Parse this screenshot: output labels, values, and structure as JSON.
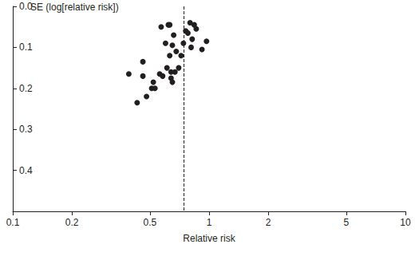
{
  "chart_data": {
    "type": "scatter",
    "xlabel": "Relative risk",
    "ylabel": "SE (log[relative risk])",
    "x": [
      0.39,
      0.43,
      0.46,
      0.46,
      0.48,
      0.51,
      0.52,
      0.53,
      0.56,
      0.57,
      0.58,
      0.6,
      0.61,
      0.62,
      0.63,
      0.63,
      0.64,
      0.64,
      0.65,
      0.65,
      0.66,
      0.67,
      0.68,
      0.7,
      0.72,
      0.74,
      0.76,
      0.78,
      0.8,
      0.81,
      0.82,
      0.84,
      0.86,
      0.92,
      0.97
    ],
    "y": [
      0.165,
      0.235,
      0.135,
      0.17,
      0.22,
      0.2,
      0.185,
      0.2,
      0.165,
      0.05,
      0.17,
      0.09,
      0.15,
      0.045,
      0.045,
      0.12,
      0.16,
      0.175,
      0.185,
      0.095,
      0.07,
      0.16,
      0.11,
      0.15,
      0.12,
      0.09,
      0.06,
      0.065,
      0.04,
      0.1,
      0.08,
      0.045,
      0.055,
      0.105,
      0.085
    ],
    "color": "#231f20",
    "marker": "circle",
    "log": "x",
    "grid": false,
    "xlim": [
      0.1,
      10
    ],
    "xticks": [
      0.1,
      0.2,
      0.5,
      1,
      2,
      5,
      10
    ],
    "ylim": [
      0,
      0.5
    ],
    "yticks": [
      {
        "value": 0,
        "label": "0.0"
      },
      0.1,
      0.2,
      0.3,
      0.4
    ],
    "reference_line": {
      "x": 0.74,
      "line_style": "dashed"
    }
  }
}
